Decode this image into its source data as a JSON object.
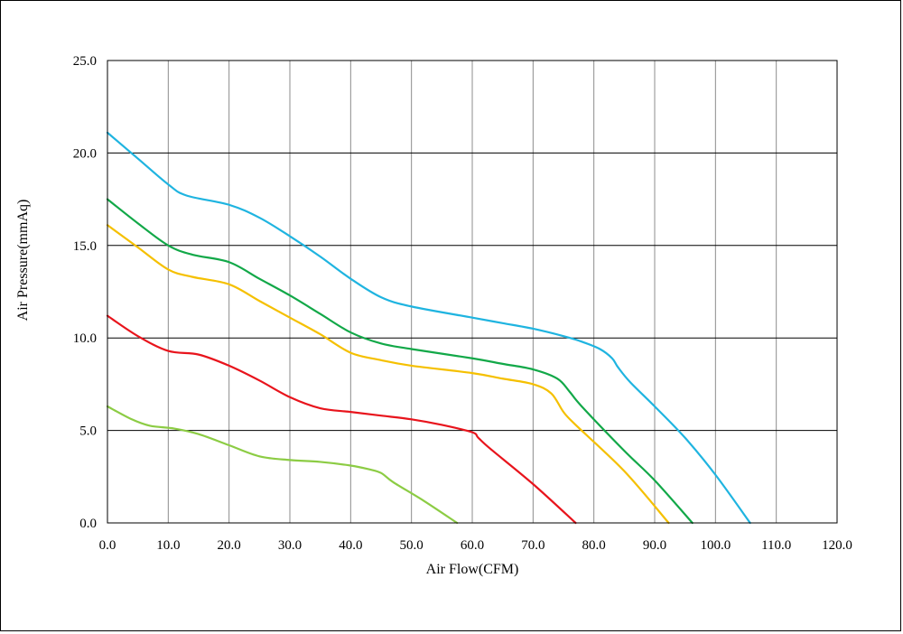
{
  "chart_data": {
    "type": "line",
    "title": "",
    "xlabel": "Air Flow(CFM)",
    "ylabel": "Air Pressure(mmAq)",
    "xlim": [
      0,
      120
    ],
    "ylim": [
      0,
      25
    ],
    "xticks": [
      "0.0",
      "10.0",
      "20.0",
      "30.0",
      "40.0",
      "50.0",
      "60.0",
      "70.0",
      "80.0",
      "90.0",
      "100.0",
      "110.0",
      "120.0"
    ],
    "yticks": [
      "0.0",
      "5.0",
      "10.0",
      "15.0",
      "20.0",
      "25.0"
    ],
    "grid": true,
    "legend": "none",
    "series": [
      {
        "color": "#1fb4e0",
        "x": [
          0,
          5,
          10,
          13,
          20,
          25,
          30,
          35,
          40,
          45,
          50,
          60,
          65,
          70,
          75,
          78,
          81,
          83,
          84,
          86,
          90,
          95,
          100,
          105.7
        ],
        "y": [
          21.1,
          19.7,
          18.3,
          17.7,
          17.2,
          16.5,
          15.5,
          14.4,
          13.2,
          12.2,
          11.7,
          11.1,
          10.8,
          10.5,
          10.1,
          9.8,
          9.4,
          8.9,
          8.4,
          7.6,
          6.3,
          4.6,
          2.6,
          0
        ]
      },
      {
        "color": "#12a848",
        "x": [
          0,
          5,
          10,
          14,
          20,
          25,
          30,
          35,
          40,
          45,
          50,
          60,
          65,
          70,
          74,
          76,
          78,
          85,
          90,
          96.2
        ],
        "y": [
          17.5,
          16.2,
          15.0,
          14.5,
          14.1,
          13.2,
          12.3,
          11.3,
          10.3,
          9.7,
          9.4,
          8.9,
          8.6,
          8.3,
          7.8,
          7.1,
          6.3,
          3.9,
          2.3,
          0
        ]
      },
      {
        "color": "#f5c000",
        "x": [
          0,
          5,
          10,
          14,
          20,
          25,
          30,
          35,
          40,
          45,
          50,
          60,
          65,
          70,
          73,
          75,
          77,
          85,
          92.3
        ],
        "y": [
          16.1,
          14.9,
          13.7,
          13.3,
          12.9,
          12.0,
          11.1,
          10.2,
          9.2,
          8.8,
          8.5,
          8.1,
          7.8,
          7.5,
          7.0,
          6.0,
          5.3,
          2.8,
          0
        ]
      },
      {
        "color": "#e8141c",
        "x": [
          0,
          5,
          10,
          15,
          20,
          25,
          30,
          35,
          40,
          45,
          50,
          55,
          60,
          61,
          63,
          70,
          77
        ],
        "y": [
          11.2,
          10.1,
          9.3,
          9.1,
          8.5,
          7.7,
          6.8,
          6.2,
          6.0,
          5.8,
          5.6,
          5.3,
          4.9,
          4.6,
          4.0,
          2.1,
          0
        ]
      },
      {
        "color": "#8ccc44",
        "x": [
          0,
          4,
          7,
          11,
          15,
          20,
          25,
          30,
          35,
          40,
          43,
          45,
          47,
          52,
          57.5
        ],
        "y": [
          6.3,
          5.6,
          5.25,
          5.1,
          4.8,
          4.2,
          3.6,
          3.4,
          3.3,
          3.1,
          2.9,
          2.7,
          2.2,
          1.2,
          0
        ]
      }
    ]
  }
}
